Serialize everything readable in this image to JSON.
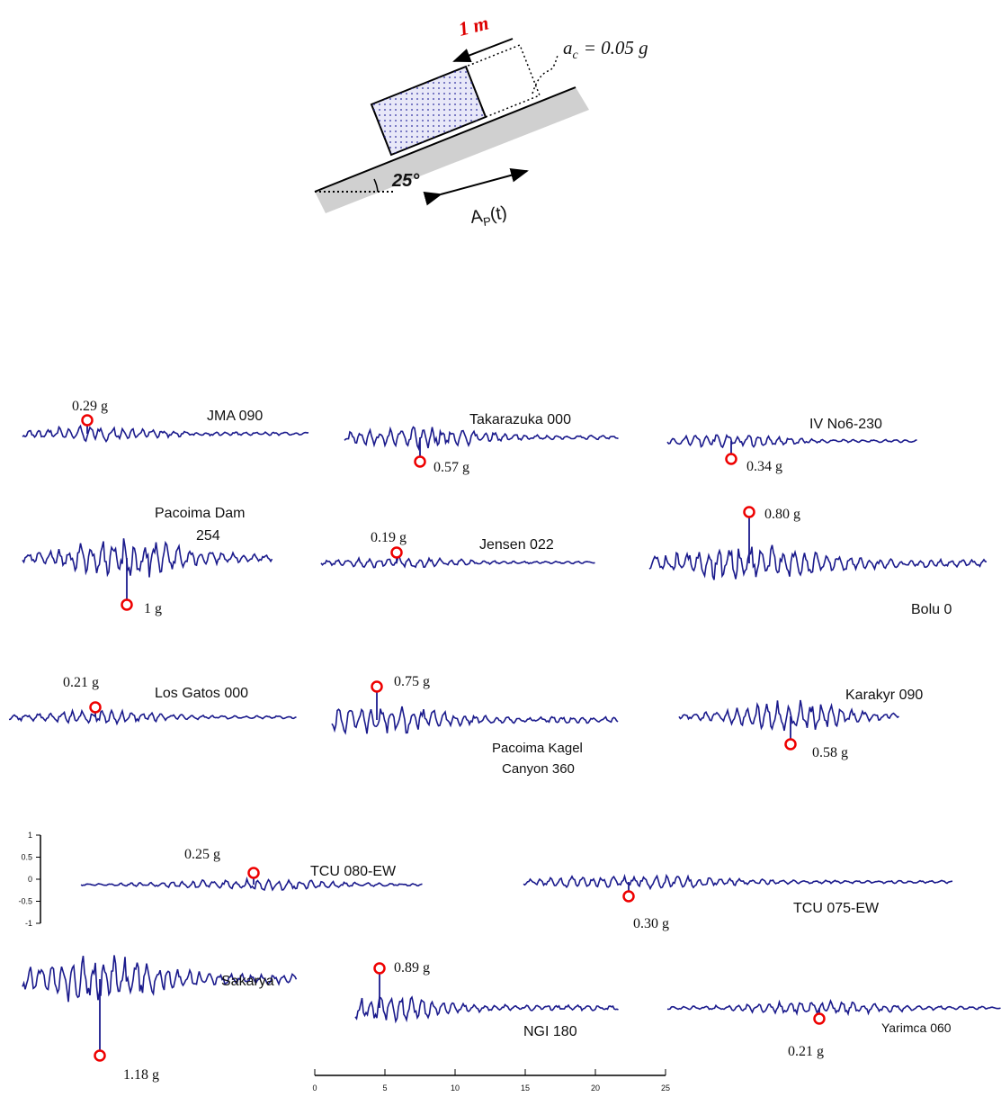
{
  "diagram": {
    "displacement": "1 m",
    "ac_symbol": "a",
    "ac_subscript": "c",
    "ac_value": "= 0.05 g",
    "angle": "25°",
    "input_symbol": "A",
    "input_subscript": "P",
    "input_suffix": "(t)"
  },
  "records": [
    {
      "name": [
        "JMA 090"
      ],
      "peak": "0.29 g"
    },
    {
      "name": [
        "Takarazuka 000"
      ],
      "peak": "0.57 g"
    },
    {
      "name": [
        "IV No6-230"
      ],
      "peak": "0.34 g"
    },
    {
      "name": [
        "Pacoima Dam",
        "254"
      ],
      "peak": "1 g"
    },
    {
      "name": [
        "Jensen 022"
      ],
      "peak": "0.19 g"
    },
    {
      "name": [
        "Bolu 0"
      ],
      "peak": "0.80 g"
    },
    {
      "name": [
        "Los Gatos 000"
      ],
      "peak": "0.21 g"
    },
    {
      "name": [
        "Pacoima Kagel",
        "Canyon 360"
      ],
      "peak": "0.75 g"
    },
    {
      "name": [
        "Karakyr 090"
      ],
      "peak": "0.58 g"
    },
    {
      "name": [
        "TCU 080-EW"
      ],
      "peak": "0.25 g"
    },
    {
      "name": [
        "TCU 075-EW"
      ],
      "peak": "0.30 g"
    },
    {
      "name": [
        "Sakarya"
      ],
      "peak": "1.18 g"
    },
    {
      "name": [
        "NGI 180"
      ],
      "peak": "0.89 g"
    },
    {
      "name": [
        "Yarimca 060"
      ],
      "peak": "0.21 g"
    }
  ],
  "y_axis_ticks": [
    "1",
    "0.5",
    "0",
    "-0.5",
    "-1"
  ],
  "time_axis_ticks": [
    "0",
    "5",
    "10",
    "15",
    "20",
    "25"
  ]
}
